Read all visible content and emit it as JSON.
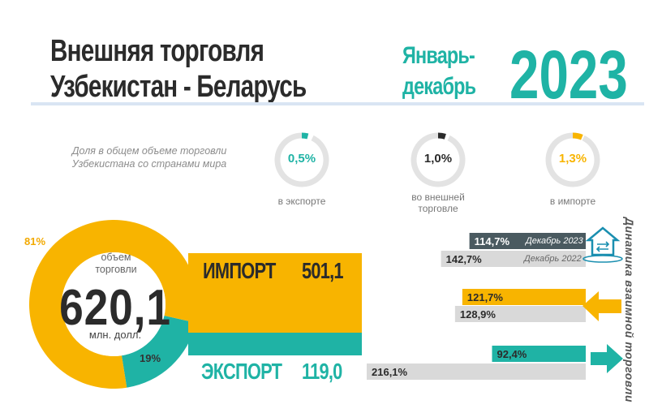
{
  "header": {
    "title_line1": "Внешняя торговля",
    "title_line2": "Узбекистан - Беларусь",
    "period_line1": "Январь-",
    "period_line2": "декабрь",
    "year": "2023"
  },
  "share": {
    "caption": "Доля в общем объеме торговли Узбекистана со странами мира",
    "gauges": [
      {
        "value": "0,5%",
        "label": "в экспорте",
        "color": "#1fb3a5",
        "fraction": 0.005
      },
      {
        "value": "1,0%",
        "label": "во внешней торговле",
        "color": "#2b2b2b",
        "fraction": 0.01
      },
      {
        "value": "1,3%",
        "label": "в импорте",
        "color": "#f8b400",
        "fraction": 0.013
      }
    ]
  },
  "colors": {
    "import": "#f8b400",
    "export": "#1fb3a5",
    "grey": "#d9d9d9",
    "dark": "#4a5a60"
  },
  "chart_data": [
    {
      "type": "pie",
      "donut": true,
      "title": "объем торговли",
      "total": "620,1",
      "unit": "млн. долл.",
      "slices": [
        {
          "name": "ИМПОРТ",
          "value": 81,
          "label": "81%",
          "color": "#f8b400"
        },
        {
          "name": "ЭКСПОРТ",
          "value": 19,
          "label": "19%",
          "color": "#1fb3a5"
        }
      ]
    },
    {
      "type": "bar",
      "categories": [
        "ИМПОРТ",
        "ЭКСПОРТ"
      ],
      "values": [
        501.1,
        119.0
      ],
      "value_labels": [
        "501,1",
        "119,0"
      ]
    },
    {
      "type": "bar",
      "title": "Динамика взаимной торговли",
      "categories": [
        "взаимная торговля",
        "импорт",
        "экспорт"
      ],
      "series": [
        {
          "name": "Декабрь 2023",
          "values": [
            114.7,
            121.7,
            92.4
          ],
          "labels": [
            "114,7%",
            "121,7%",
            "92,4%"
          ]
        },
        {
          "name": "Декабрь 2022",
          "values": [
            142.7,
            128.9,
            216.1
          ],
          "labels": [
            "142,7%",
            "128,9%",
            "216,1%"
          ]
        }
      ]
    }
  ]
}
